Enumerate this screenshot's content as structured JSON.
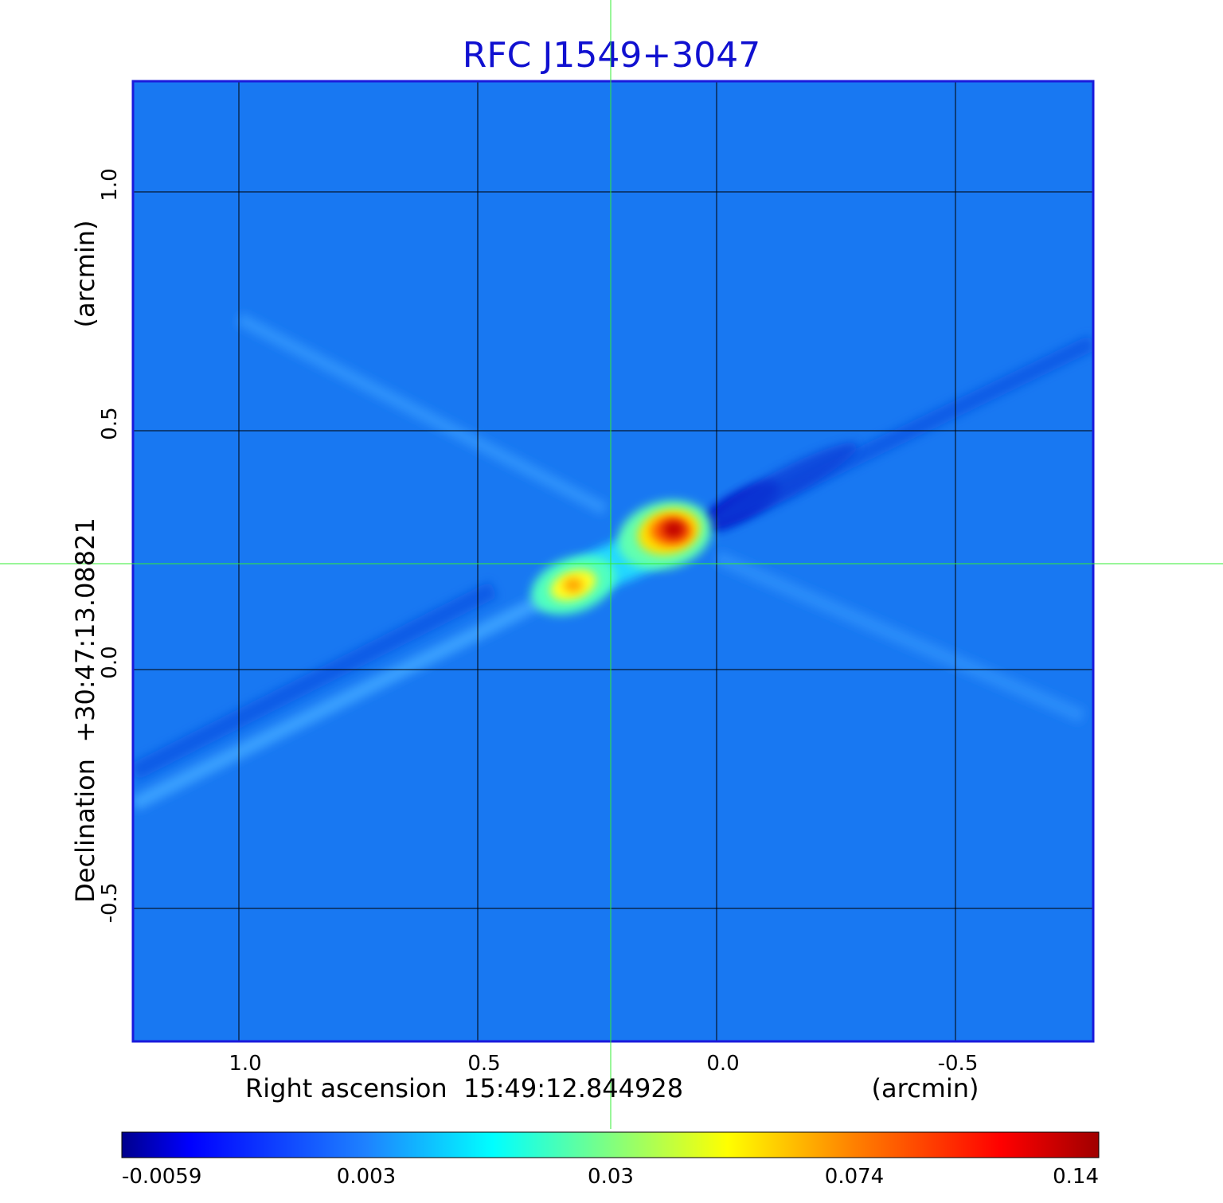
{
  "chart_data": {
    "type": "heatmap",
    "title": "RFC J1549+3047",
    "xlabel": "Right ascension  15:49:12.844928",
    "xunit": "(arcmin)",
    "ylabel": "Declination  +30:47:13.08821",
    "yunit": "(arcmin)",
    "xlim": [
      1.22,
      -0.79
    ],
    "ylim": [
      -0.77,
      1.23
    ],
    "x_ticks": [
      {
        "value": 1.0,
        "label": "1.0"
      },
      {
        "value": 0.5,
        "label": "0.5"
      },
      {
        "value": 0.0,
        "label": "0.0"
      },
      {
        "value": -0.5,
        "label": "-0.5"
      }
    ],
    "y_ticks": [
      {
        "value": 1.0,
        "label": "1.0"
      },
      {
        "value": 0.5,
        "label": "0.5"
      },
      {
        "value": 0.0,
        "label": "0.0"
      },
      {
        "value": -0.5,
        "label": "-0.5"
      }
    ],
    "grid": true,
    "crosshair": {
      "x": 0.22,
      "y": 0.22
    },
    "colorbar": {
      "labels": [
        "-0.0059",
        "0.003",
        "0.03",
        "0.074",
        "0.14"
      ],
      "min": -0.0059,
      "max": 0.14,
      "colormap": "jet"
    },
    "features": [
      {
        "name": "core",
        "x": 0.09,
        "y": 0.29,
        "peak": 0.14
      },
      {
        "name": "jet_component",
        "x": 0.3,
        "y": 0.18,
        "peak": 0.085
      },
      {
        "name": "negative_sidelobe",
        "x": -0.06,
        "y": 0.34,
        "peak": -0.0059
      }
    ]
  },
  "colors": {
    "title": "#1010d0",
    "frame": "#1a1adc",
    "grid": "#000000",
    "crosshair": "#33ee33",
    "background_level": "#1878f2"
  }
}
